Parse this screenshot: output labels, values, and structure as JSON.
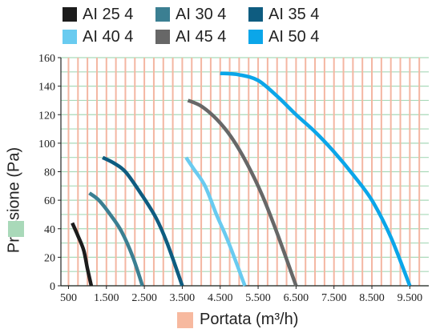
{
  "colors": {
    "grid_h": "#a9d9b9",
    "grid_v": "#f4b6a2",
    "axis": "#222222"
  },
  "legend": {
    "swatch_y_color": "#a9d9b9",
    "swatch_x_color": "#f7b99f"
  },
  "chart_data": {
    "type": "line",
    "xlabel": "Portata (m³/h)",
    "ylabel": "Pressione (Pa)",
    "xlim": [
      300,
      10000
    ],
    "ylim": [
      0,
      160
    ],
    "x_ticks": [
      500,
      1500,
      2500,
      3500,
      4500,
      5500,
      6500,
      7500,
      8500,
      9500
    ],
    "x_tick_labels": [
      "500",
      "1.500",
      "2.500",
      "3.500",
      "4.500",
      "5.500",
      "6.500",
      "7.500",
      "8.500",
      "9.500"
    ],
    "y_ticks": [
      0,
      20,
      40,
      60,
      80,
      100,
      120,
      140,
      160
    ],
    "y_tick_labels": [
      "0",
      "20",
      "40",
      "60",
      "80",
      "100",
      "120",
      "140",
      "160"
    ],
    "series": [
      {
        "name": "AI 25 4",
        "color": "#1c1c1c",
        "x": [
          600,
          750,
          900,
          1000,
          1100
        ],
        "y": [
          44,
          35,
          25,
          12,
          0
        ]
      },
      {
        "name": "AI 30 4",
        "color": "#3b7f92",
        "x": [
          1050,
          1300,
          1600,
          1900,
          2200,
          2450
        ],
        "y": [
          65,
          60,
          50,
          38,
          20,
          0
        ]
      },
      {
        "name": "AI 35 4",
        "color": "#0e5c80",
        "x": [
          1400,
          1700,
          2000,
          2400,
          2800,
          3100,
          3500
        ],
        "y": [
          90,
          86,
          80,
          65,
          48,
          30,
          0
        ]
      },
      {
        "name": "AI 40 4",
        "color": "#69cbf0",
        "x": [
          3600,
          3800,
          4100,
          4400,
          4600,
          4800,
          5150
        ],
        "y": [
          90,
          82,
          70,
          50,
          38,
          25,
          0
        ]
      },
      {
        "name": "AI 45 4",
        "color": "#676767",
        "x": [
          3650,
          4000,
          4400,
          4800,
          5200,
          5600,
          6000,
          6500
        ],
        "y": [
          130,
          126,
          117,
          104,
          86,
          64,
          37,
          0
        ]
      },
      {
        "name": "AI 50 4",
        "color": "#0ba6e9",
        "x": [
          4500,
          5000,
          5500,
          6000,
          6500,
          7000,
          7500,
          8000,
          8500,
          9000,
          9500
        ],
        "y": [
          149,
          148,
          144,
          133,
          120,
          108,
          94,
          78,
          60,
          34,
          0
        ]
      }
    ]
  }
}
